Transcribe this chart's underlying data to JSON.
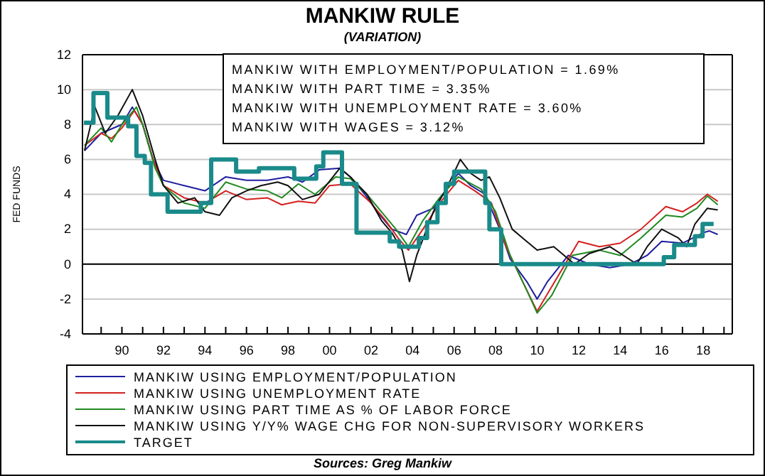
{
  "chart_data": {
    "type": "line",
    "title": "MANKIW RULE",
    "subtitle": "(VARIATION)",
    "ylabel": "FED FUNDS",
    "xlim": [
      1988.1,
      2019.4
    ],
    "ylim": [
      -4,
      12
    ],
    "yticks": [
      -4,
      -2,
      0,
      2,
      4,
      6,
      8,
      10,
      12
    ],
    "xticks": [
      {
        "value": 1989,
        "label": null
      },
      {
        "value": 1990,
        "label": "90"
      },
      {
        "value": 1991,
        "label": null
      },
      {
        "value": 1992,
        "label": "92"
      },
      {
        "value": 1993,
        "label": null
      },
      {
        "value": 1994,
        "label": "94"
      },
      {
        "value": 1995,
        "label": null
      },
      {
        "value": 1996,
        "label": "96"
      },
      {
        "value": 1997,
        "label": null
      },
      {
        "value": 1998,
        "label": "98"
      },
      {
        "value": 1999,
        "label": null
      },
      {
        "value": 2000,
        "label": "00"
      },
      {
        "value": 2001,
        "label": null
      },
      {
        "value": 2002,
        "label": "02"
      },
      {
        "value": 2003,
        "label": null
      },
      {
        "value": 2004,
        "label": "04"
      },
      {
        "value": 2005,
        "label": null
      },
      {
        "value": 2006,
        "label": "06"
      },
      {
        "value": 2007,
        "label": null
      },
      {
        "value": 2008,
        "label": "08"
      },
      {
        "value": 2009,
        "label": null
      },
      {
        "value": 2010,
        "label": "10"
      },
      {
        "value": 2011,
        "label": null
      },
      {
        "value": 2012,
        "label": "12"
      },
      {
        "value": 2013,
        "label": null
      },
      {
        "value": 2014,
        "label": "14"
      },
      {
        "value": 2015,
        "label": null
      },
      {
        "value": 2016,
        "label": "16"
      },
      {
        "value": 2017,
        "label": null
      },
      {
        "value": 2018,
        "label": "18"
      },
      {
        "value": 2019,
        "label": null
      }
    ],
    "grid": "y",
    "legend": "bottom",
    "line_style": "solid",
    "marker": "none",
    "ref_lines": [
      {
        "axis": "y",
        "value": 0,
        "color": "#000000"
      }
    ],
    "annotations": [
      "MANKIW WITH EMPLOYMENT/POPULATION = 1.69%",
      "MANKIW WITH PART TIME = 3.35%",
      "MANKIW WITH UNEMPLOYMENT RATE = 3.60%",
      "MANKIW WITH WAGES = 3.12%",
      "Sources:  Greg Mankiw"
    ],
    "series": [
      {
        "name": "MANKIW USING EMPLOYMENT/POPULATION",
        "color": "#1f1fa0",
        "x": [
          1988.2,
          1989,
          1990,
          1990.5,
          1991,
          1991.5,
          1992,
          1993,
          1994,
          1995,
          1996,
          1997,
          1998,
          1998.7,
          1999.5,
          2000.5,
          2001,
          2001.7,
          2002.3,
          2003,
          2003.7,
          2004.2,
          2005,
          2006.2,
          2006.8,
          2007.5,
          2008.2,
          2008.7,
          2009.5,
          2010,
          2010.5,
          2011.5,
          2012.5,
          2013.5,
          2014.5,
          2015.3,
          2016,
          2017,
          2018,
          2018.3,
          2018.7
        ],
        "values": [
          6.5,
          7.5,
          8,
          9,
          8,
          6,
          4.8,
          4.5,
          4.2,
          5,
          4.8,
          4.8,
          5,
          4.7,
          5.4,
          5.5,
          5,
          4,
          3,
          2,
          1.7,
          2.8,
          3.2,
          5.2,
          4.5,
          4,
          2,
          0.3,
          -1,
          -2,
          -1,
          0.5,
          0,
          -0.2,
          0,
          0.5,
          1.3,
          1.2,
          1.8,
          1.9,
          1.7
        ]
      },
      {
        "name": "MANKIW USING UNEMPLOYMENT RATE",
        "color": "#d42020",
        "x": [
          1988.2,
          1989,
          1989.5,
          1990,
          1990.6,
          1991,
          1991.5,
          1992,
          1993,
          1994,
          1995,
          1996,
          1997,
          1997.7,
          1998.5,
          1999.3,
          2000,
          2001,
          2002,
          2002.7,
          2003.3,
          2003.8,
          2004.5,
          2005.3,
          2006.2,
          2007,
          2007.8,
          2008.5,
          2009.3,
          2010,
          2010.6,
          2011.5,
          2012,
          2013,
          2014,
          2015,
          2016.2,
          2017,
          2017.7,
          2018.2,
          2018.7
        ],
        "values": [
          6.8,
          7.5,
          7.2,
          7.8,
          8.8,
          8,
          6,
          4.5,
          3.8,
          3.5,
          4.2,
          3.7,
          3.8,
          3.4,
          3.6,
          3.5,
          4.5,
          4.6,
          3.5,
          2.5,
          1.5,
          0.8,
          2,
          3.5,
          4.8,
          4.2,
          3.5,
          1,
          -1,
          -2.7,
          -1.5,
          0.3,
          1.3,
          1,
          1.2,
          2,
          3.3,
          3,
          3.5,
          4,
          3.6
        ]
      },
      {
        "name": "MANKIW USING PART TIME AS % OF LABOR FORCE",
        "color": "#208a20",
        "x": [
          1988.2,
          1989,
          1989.5,
          1990,
          1990.7,
          1991,
          1991.6,
          1992,
          1993,
          1994,
          1995,
          1996,
          1997,
          1997.7,
          1998.5,
          1999.3,
          2000.3,
          2001,
          2001.8,
          2002.5,
          2003.2,
          2003.8,
          2004.5,
          2005.3,
          2006.2,
          2007.3,
          2008,
          2008.7,
          2009.5,
          2010,
          2010.7,
          2011.7,
          2013,
          2014,
          2015,
          2016.2,
          2017,
          2017.7,
          2018.2,
          2018.7
        ],
        "values": [
          6.8,
          7.8,
          7,
          8,
          9,
          8,
          5.5,
          4.5,
          3.5,
          3.2,
          4.7,
          4.3,
          4.2,
          3.8,
          4.6,
          4,
          5,
          4.9,
          4,
          3,
          2,
          1,
          2.5,
          3.8,
          5,
          4.3,
          3,
          0.5,
          -1.5,
          -2.8,
          -1.8,
          0.5,
          0.8,
          0.5,
          1.5,
          2.8,
          2.7,
          3.2,
          3.9,
          3.4
        ]
      },
      {
        "name": "MANKIW USING Y/Y% WAGE CHG FOR NON-SUPERVISORY WORKERS",
        "color": "#101010",
        "x": [
          1988.2,
          1988.7,
          1989.2,
          1989.8,
          1990.5,
          1991,
          1991.6,
          1992,
          1992.7,
          1993.5,
          1994,
          1994.7,
          1995.3,
          1996,
          1996.7,
          1997.5,
          1998,
          1998.7,
          1999.5,
          2000.5,
          2001,
          2001.8,
          2002.5,
          2003,
          2003.5,
          2003.85,
          2004.2,
          2005,
          2005.7,
          2006.3,
          2006.8,
          2007.3,
          2007.7,
          2008.2,
          2008.8,
          2009.3,
          2010,
          2010.8,
          2011.8,
          2012.5,
          2013.5,
          2014.8,
          2015.3,
          2016,
          2016.8,
          2017.2,
          2017.6,
          2018.2,
          2018.7
        ],
        "values": [
          6.5,
          9,
          7.5,
          8.5,
          10,
          8.5,
          6,
          4.5,
          3.5,
          3.8,
          3,
          2.8,
          3.8,
          4.2,
          4.5,
          4.7,
          4.5,
          3.7,
          4,
          5.5,
          5,
          4,
          2.5,
          1.8,
          0.8,
          -1,
          0.5,
          3,
          4.5,
          6,
          5.2,
          4.8,
          5,
          3.8,
          2,
          1.5,
          0.8,
          1,
          0,
          0.6,
          1,
          0,
          1,
          2,
          1.5,
          1,
          2.3,
          3.2,
          3.1
        ]
      },
      {
        "name": "TARGET",
        "type": "step",
        "color": "#1a8a8a",
        "x": [
          1988.17,
          1988.63,
          1989.3,
          1990.3,
          1990.7,
          1991.1,
          1991.4,
          1992.2,
          1993.8,
          1994.3,
          1995.5,
          1996.6,
          1998.3,
          1999.36,
          1999.7,
          2000.6,
          2001.3,
          2002.9,
          2003.35,
          2004.3,
          2004.7,
          2005.2,
          2005.6,
          2006,
          2007.5,
          2007.7,
          2008.27,
          2016.1,
          2016.6,
          2017.6,
          2017.97,
          2018.5
        ],
        "values": [
          8.1,
          9.8,
          8.4,
          7.9,
          6.2,
          5.8,
          4,
          3,
          3.5,
          6,
          5.3,
          5.5,
          4.9,
          5.6,
          6.4,
          4.6,
          1.8,
          1.3,
          1,
          1.5,
          2.4,
          3.5,
          4.6,
          5.3,
          3.5,
          2,
          0,
          0.4,
          1.1,
          1.6,
          2.3,
          2.3
        ]
      }
    ]
  }
}
